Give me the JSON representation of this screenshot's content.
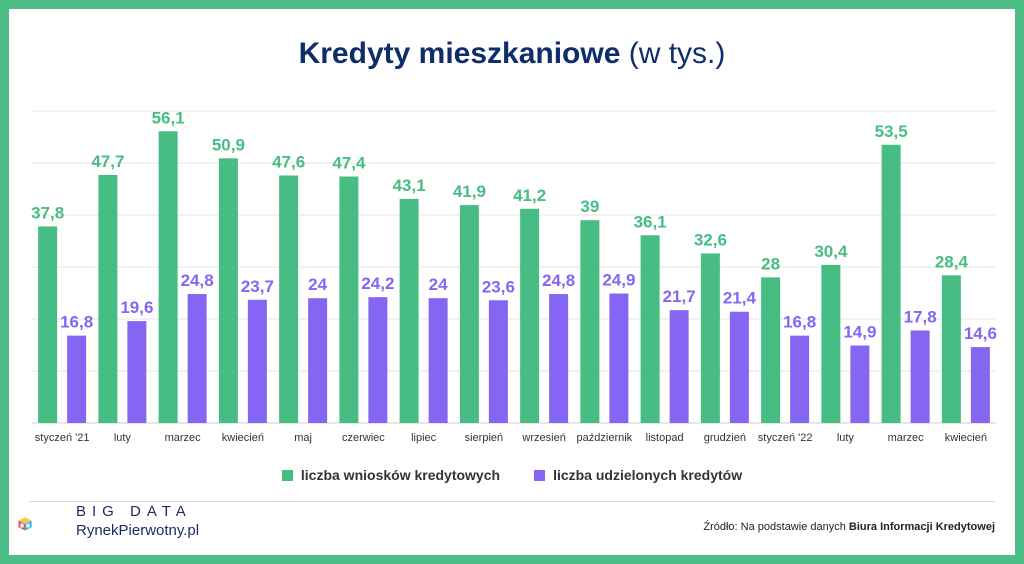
{
  "title": {
    "bold": "Kredyty mieszkaniowe",
    "light": "(w tys.)"
  },
  "colors": {
    "frame": "#4bbf85",
    "title": "#0f2d6b",
    "green": "#47bd84",
    "purple": "#8566f2"
  },
  "chart_data": {
    "type": "bar",
    "categories": [
      "styczeń '21",
      "luty",
      "marzec",
      "kwiecień",
      "maj",
      "czerwiec",
      "lipiec",
      "sierpień",
      "wrzesień",
      "październik",
      "listopad",
      "grudzień",
      "styczeń '22",
      "luty",
      "marzec",
      "kwiecień"
    ],
    "series": [
      {
        "name": "liczba wniosków kredytowych",
        "color": "#47bd84",
        "values": [
          37.8,
          47.7,
          56.1,
          50.9,
          47.6,
          47.4,
          43.1,
          41.9,
          41.2,
          39,
          36.1,
          32.6,
          28,
          30.4,
          53.5,
          28.4
        ],
        "labels": [
          "37,8",
          "47,7",
          "56,1",
          "50,9",
          "47,6",
          "47,4",
          "43,1",
          "41,9",
          "41,2",
          "39",
          "36,1",
          "32,6",
          "28",
          "30,4",
          "53,5",
          "28,4"
        ]
      },
      {
        "name": "liczba udzielonych kredytów",
        "color": "#8566f2",
        "values": [
          16.8,
          19.6,
          24.8,
          23.7,
          24,
          24.2,
          24,
          23.6,
          24.8,
          24.9,
          21.7,
          21.4,
          16.8,
          14.9,
          17.8,
          14.6
        ],
        "labels": [
          "16,8",
          "19,6",
          "24,8",
          "23,7",
          "24",
          "24,2",
          "24",
          "23,6",
          "24,8",
          "24,9",
          "21,7",
          "21,4",
          "16,8",
          "14,9",
          "17,8",
          "14,6"
        ]
      }
    ],
    "ylim": [
      0,
      60
    ],
    "grid": true,
    "legend": "bottom-center"
  },
  "brand": {
    "line1": "BIG DATA",
    "line2": "RynekPierwotny.pl"
  },
  "source": {
    "prefix": "Źródło: Na podstawie danych",
    "bold": "Biura Informacji Kredytowej"
  }
}
